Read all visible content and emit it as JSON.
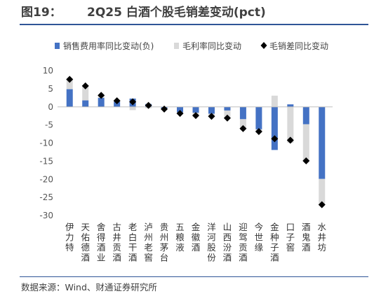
{
  "figure": {
    "number": "图19：",
    "title": "2Q25 白酒个股毛销差变动(pct)",
    "source": "数据来源：Wind、财通证券研究所"
  },
  "chart_data": {
    "type": "bar",
    "categories": [
      "伊力特",
      "天佑德酒",
      "舍得酒业",
      "古井贡酒",
      "老白干酒",
      "泸州老窖",
      "贵州茅台",
      "五粮液",
      "金徽酒",
      "洋河股份",
      "山西汾酒",
      "迎驾贡酒",
      "今世缘",
      "金种子酒",
      "口子窖",
      "酒鬼酒",
      "水井坊"
    ],
    "series": [
      {
        "name": "销售费用率同比变动(负)",
        "kind": "bar",
        "color": "#4472c4",
        "values": [
          4.9,
          1.8,
          2.5,
          1.4,
          2.3,
          0.8,
          -0.4,
          -1.5,
          -1.6,
          -1.9,
          -1.0,
          -3.4,
          -6.2,
          -11.9,
          0.7,
          -4.8,
          -19.9
        ]
      },
      {
        "name": "毛利率同比变动",
        "kind": "bar",
        "color": "#d9d9d9",
        "values": [
          2.7,
          4.0,
          0.7,
          0.3,
          -0.9,
          -0.4,
          -0.2,
          -0.3,
          -1.0,
          -0.7,
          -2.1,
          -2.6,
          -0.6,
          3.1,
          -9.9,
          -10.1,
          -7.1
        ]
      },
      {
        "name": "毛销差同比变动",
        "kind": "marker",
        "color": "#000000",
        "values": [
          7.6,
          5.8,
          3.2,
          1.7,
          1.4,
          0.4,
          -0.6,
          -1.8,
          -2.4,
          -2.6,
          -3.1,
          -6.0,
          -6.8,
          -8.8,
          -9.2,
          -14.9,
          -27.0
        ]
      }
    ],
    "yticks": [
      10,
      5,
      0,
      -5,
      -10,
      -15,
      -20,
      -25,
      -30
    ],
    "ylim": [
      -30,
      10
    ],
    "legend_position": "top",
    "grid": false
  }
}
